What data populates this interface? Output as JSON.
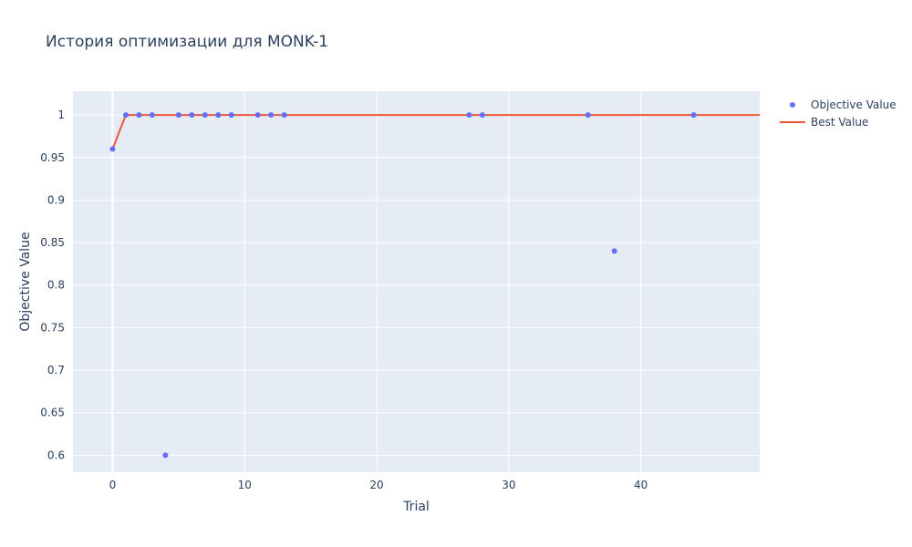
{
  "chart_data": {
    "type": "scatter",
    "title": "История оптимизации для MONK-1",
    "xlabel": "Trial",
    "ylabel": "Objective Value",
    "xlim": [
      -3,
      49
    ],
    "ylim": [
      0.58,
      1.028
    ],
    "x_ticks": [
      0,
      10,
      20,
      30,
      40
    ],
    "y_ticks": [
      0.6,
      0.65,
      0.7,
      0.75,
      0.8,
      0.85,
      0.9,
      0.95,
      1
    ],
    "y_tick_labels": [
      "0.6",
      "0.65",
      "0.7",
      "0.75",
      "0.8",
      "0.85",
      "0.9",
      "0.95",
      "1"
    ],
    "grid": true,
    "legend_position": "top-right",
    "series": [
      {
        "name": "Objective Value",
        "mode": "markers",
        "color": "#636efa",
        "x": [
          0,
          1,
          2,
          3,
          4,
          5,
          6,
          7,
          8,
          9,
          11,
          12,
          13,
          27,
          28,
          36,
          38,
          44
        ],
        "y": [
          0.96,
          1,
          1,
          1,
          0.6,
          1,
          1,
          1,
          1,
          1,
          1,
          1,
          1,
          1,
          1,
          1,
          0.84,
          1
        ]
      },
      {
        "name": "Best Value",
        "mode": "lines",
        "color": "#ef553b",
        "x": [
          0,
          1,
          49
        ],
        "y": [
          0.96,
          1,
          1
        ]
      }
    ]
  }
}
